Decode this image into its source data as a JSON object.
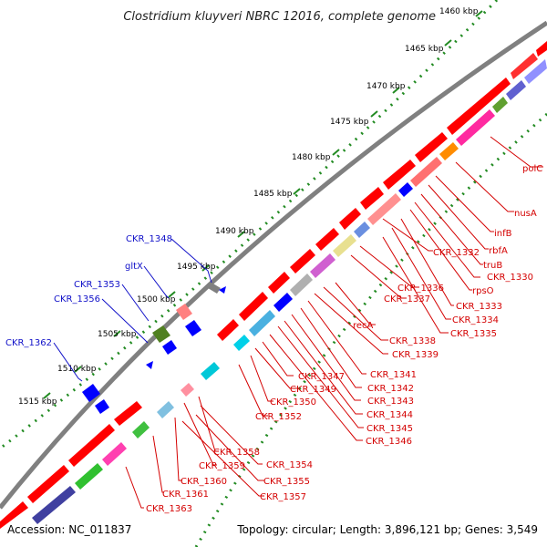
{
  "title": "Clostridium kluyveri NBRC 12016, complete genome",
  "footer": {
    "accession": "Accession: NC_011837",
    "summary": "Topology: circular; Length: 3,896,121 bp; Genes: 3,549"
  },
  "ticks": [
    "1460 kbp",
    "1465 kbp",
    "1470 kbp",
    "1475 kbp",
    "1480 kbp",
    "1485 kbp",
    "1490 kbp",
    "1495 kbp",
    "1500 kbp",
    "1505 kbp",
    "1510 kbp",
    "1515 kbp"
  ],
  "reverse_strand_labels": [
    "polC",
    "nusA",
    "infB",
    "rbfA",
    "truB",
    "CKR_1330",
    "rpsO",
    "CKR_1332",
    "CKR_1333",
    "CKR_1334",
    "CKR_1335",
    "CKR_1336",
    "CKR_1337",
    "recA",
    "CKR_1338",
    "CKR_1339",
    "CKR_1341",
    "CKR_1342",
    "CKR_1343",
    "CKR_1344",
    "CKR_1345",
    "CKR_1346",
    "CKR_1347",
    "CKR_1349",
    "CKR_1350",
    "CKR_1352",
    "CKR_1354",
    "CKR_1355",
    "CKR_1357",
    "CKR_1358",
    "CKR_1359",
    "CKR_1360",
    "CKR_1361",
    "CKR_1363"
  ],
  "forward_strand_labels": [
    "CKR_1348",
    "gltX",
    "CKR_1353",
    "CKR_1356",
    "CKR_1362"
  ],
  "colors": {
    "backbone": "#808080",
    "tick_dots": "#228b22",
    "reverse_label": "#d40000",
    "forward_label": "#1010c8"
  }
}
